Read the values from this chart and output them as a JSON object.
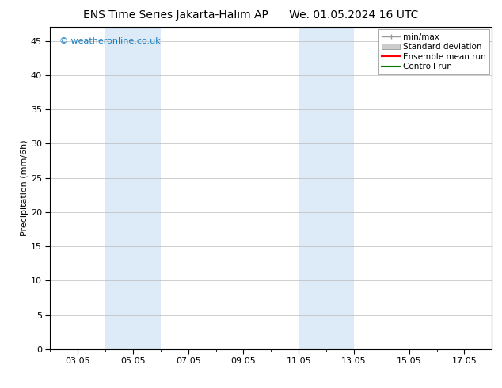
{
  "title_left": "ENS Time Series Jakarta-Halim AP",
  "title_right": "We. 01.05.2024 16 UTC",
  "ylabel": "Precipitation (mm/6h)",
  "xlim": [
    2.0,
    18.0
  ],
  "ylim": [
    0,
    47
  ],
  "yticks": [
    0,
    5,
    10,
    15,
    20,
    25,
    30,
    35,
    40,
    45
  ],
  "xtick_labels": [
    "03.05",
    "05.05",
    "07.05",
    "09.05",
    "11.05",
    "13.05",
    "15.05",
    "17.05"
  ],
  "xtick_positions": [
    3,
    5,
    7,
    9,
    11,
    13,
    15,
    17
  ],
  "watermark": "© weatheronline.co.uk",
  "watermark_color": "#1a7fc1",
  "background_color": "#ffffff",
  "plot_background": "#ffffff",
  "shaded_regions": [
    {
      "xmin": 4.0,
      "xmax": 6.0,
      "color": "#ddeaf8"
    },
    {
      "xmin": 11.0,
      "xmax": 13.0,
      "color": "#ddeaf8"
    }
  ],
  "legend_items": [
    {
      "label": "min/max",
      "color": "#999999",
      "linewidth": 1.0,
      "linestyle": "-"
    },
    {
      "label": "Standard deviation",
      "color": "#cccccc",
      "linewidth": 5,
      "linestyle": "-"
    },
    {
      "label": "Ensemble mean run",
      "color": "#ff0000",
      "linewidth": 1.5,
      "linestyle": "-"
    },
    {
      "label": "Controll run",
      "color": "#007700",
      "linewidth": 1.5,
      "linestyle": "-"
    }
  ],
  "title_fontsize": 10,
  "tick_fontsize": 8,
  "ylabel_fontsize": 8,
  "legend_fontsize": 7.5
}
